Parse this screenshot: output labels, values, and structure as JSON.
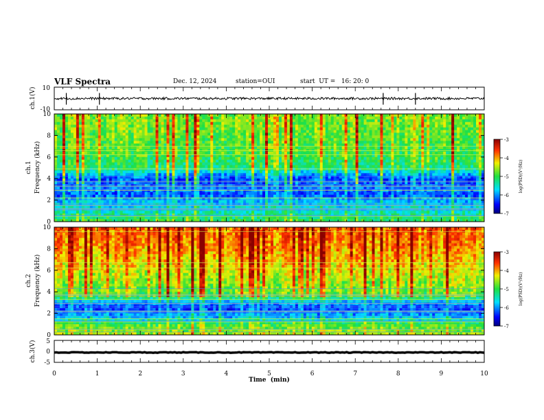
{
  "header": {
    "title": "VLF Spectra",
    "date": "Dec. 12, 2024",
    "station": "station=OUI",
    "start": "start  UT =   16: 20: 0"
  },
  "chart_data": [
    {
      "type": "line",
      "panel": "ch1-waveform",
      "ylabel": "ch.1(V)",
      "ylim": [
        -10,
        10
      ],
      "y_ticks": [
        "10",
        "-10"
      ],
      "x": "Time (min)",
      "baseline": 0,
      "noise_amplitude": 2,
      "spikes_at_min": [
        0.28,
        1.05,
        7.65,
        8.4
      ]
    },
    {
      "type": "heatmap",
      "panel": "ch1-spectrogram",
      "ylabel": "ch.1\nFrequency  (kHz)",
      "ylim": [
        0,
        10
      ],
      "y_ticks": [
        "0",
        "2",
        "4",
        "6",
        "8",
        "10"
      ],
      "xlim": [
        0,
        10
      ],
      "colorbar": {
        "label": "log(PSD)(V²/Hz)",
        "range": [
          -7,
          -3
        ],
        "ticks": [
          "-3",
          "-4",
          "-5",
          "-6",
          "-7"
        ]
      },
      "profile_log_psd": [
        [
          0,
          -5.0
        ],
        [
          1,
          -5.6
        ],
        [
          2,
          -5.9
        ],
        [
          2.5,
          -6.3
        ],
        [
          3,
          -6.1
        ],
        [
          4,
          -6.4
        ],
        [
          5,
          -5.3
        ],
        [
          6,
          -5.1
        ],
        [
          7,
          -5.0
        ],
        [
          8,
          -4.9
        ],
        [
          9,
          -4.8
        ],
        [
          10,
          -4.8
        ]
      ],
      "strong_lines_khz": [
        0.5,
        1.2,
        1.5,
        2.2,
        2.9,
        3.3,
        3.7,
        4.9,
        6.2,
        6.6,
        7.0
      ]
    },
    {
      "type": "heatmap",
      "panel": "ch2-spectrogram",
      "ylabel": "ch.2\nFrequency  (kHz)",
      "ylim": [
        0,
        10
      ],
      "y_ticks": [
        "0",
        "2",
        "4",
        "6",
        "8",
        "10"
      ],
      "xlim": [
        0,
        10
      ],
      "colorbar": {
        "label": "log(PSD)(V²/Hz)",
        "range": [
          -7,
          -3
        ],
        "ticks": [
          "-3",
          "-4",
          "-5",
          "-6",
          "-7"
        ]
      },
      "profile_log_psd": [
        [
          0,
          -4.6
        ],
        [
          1,
          -5.0
        ],
        [
          1.5,
          -5.8
        ],
        [
          2,
          -6.1
        ],
        [
          2.5,
          -6.4
        ],
        [
          3,
          -6.0
        ],
        [
          3.6,
          -5.0
        ],
        [
          5,
          -4.7
        ],
        [
          7,
          -4.3
        ],
        [
          8,
          -4.1
        ],
        [
          9,
          -4.0
        ],
        [
          10,
          -3.9
        ]
      ],
      "strong_lines_khz": [
        0.5,
        1.2,
        1.5,
        2.2,
        2.9,
        3.3,
        3.7,
        6.2,
        6.7,
        9.6
      ]
    },
    {
      "type": "line",
      "panel": "ch3-waveform",
      "ylabel": "ch.3(V)",
      "ylim": [
        -5,
        5
      ],
      "y_ticks": [
        "5",
        "0",
        "-5"
      ],
      "baseline": -0.5,
      "noise_amplitude": 0.3
    }
  ],
  "xaxis": {
    "label": "Time  (min)",
    "ticks": [
      "0",
      "1",
      "2",
      "3",
      "4",
      "5",
      "6",
      "7",
      "8",
      "9",
      "10"
    ]
  }
}
